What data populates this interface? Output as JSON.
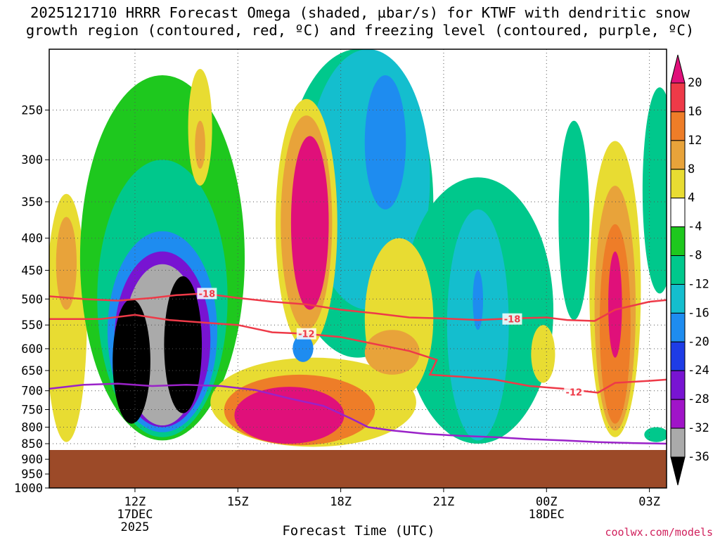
{
  "title": {
    "line1": "2025121710 HRRR Forecast Omega (shaded, µbar/s) for KTWF with dendritic snow",
    "line2": "growth region (contoured, red, ºC) and freezing level (contoured, purple, ºC)"
  },
  "credit": "coolwx.com/models",
  "chart_data": {
    "type": "heatmap",
    "title": "2025121710 HRRR Forecast Omega (shaded, µbar/s) for KTWF with dendritic snow growth region (contoured, red, ºC) and freezing level (contoured, purple, ºC)",
    "xlabel": "Forecast Time (UTC)",
    "ylabel": "",
    "x_range_hours_after_17DEC00Z": [
      9.5,
      27.5
    ],
    "y_scale": "log (inverted)",
    "ylim_mb": [
      1000,
      200
    ],
    "grid": true,
    "x_ticks": [
      {
        "hour": 12,
        "label": "12Z",
        "sub1": "17DEC",
        "sub2": "2025"
      },
      {
        "hour": 15,
        "label": "15Z",
        "sub1": "",
        "sub2": ""
      },
      {
        "hour": 18,
        "label": "18Z",
        "sub1": "",
        "sub2": ""
      },
      {
        "hour": 21,
        "label": "21Z",
        "sub1": "",
        "sub2": ""
      },
      {
        "hour": 24,
        "label": "00Z",
        "sub1": "18DEC",
        "sub2": ""
      },
      {
        "hour": 27,
        "label": "03Z",
        "sub1": "",
        "sub2": ""
      }
    ],
    "y_ticks": [
      {
        "p": 250,
        "label": "250"
      },
      {
        "p": 300,
        "label": "300"
      },
      {
        "p": 350,
        "label": "350"
      },
      {
        "p": 400,
        "label": "400"
      },
      {
        "p": 450,
        "label": "450"
      },
      {
        "p": 500,
        "label": "500"
      },
      {
        "p": 550,
        "label": "550"
      },
      {
        "p": 600,
        "label": "600"
      },
      {
        "p": 650,
        "label": "650"
      },
      {
        "p": 700,
        "label": "700"
      },
      {
        "p": 750,
        "label": "750"
      },
      {
        "p": 800,
        "label": "800"
      },
      {
        "p": 850,
        "label": "850"
      },
      {
        "p": 900,
        "label": "900"
      },
      {
        "p": 950,
        "label": "950"
      },
      {
        "p": 1000,
        "label": "1000"
      }
    ],
    "colorbar": {
      "bins": [
        {
          "lo": 20,
          "hi": null,
          "color": "#e0107a"
        },
        {
          "lo": 16,
          "hi": 20,
          "color": "#ee3a48"
        },
        {
          "lo": 12,
          "hi": 16,
          "color": "#ee7d28"
        },
        {
          "lo": 8,
          "hi": 12,
          "color": "#e8a33a"
        },
        {
          "lo": 4,
          "hi": 8,
          "color": "#e8dc32"
        },
        {
          "lo": -4,
          "hi": 4,
          "color": "#ffffff"
        },
        {
          "lo": -8,
          "hi": -4,
          "color": "#1ec81e"
        },
        {
          "lo": -12,
          "hi": -8,
          "color": "#00c88c"
        },
        {
          "lo": -16,
          "hi": -12,
          "color": "#14bece"
        },
        {
          "lo": -20,
          "hi": -16,
          "color": "#1e8cf0"
        },
        {
          "lo": -24,
          "hi": -20,
          "color": "#1e3ce6"
        },
        {
          "lo": -28,
          "hi": -24,
          "color": "#7814d2"
        },
        {
          "lo": -32,
          "hi": -28,
          "color": "#a014c8"
        },
        {
          "lo": -36,
          "hi": -32,
          "color": "#aaaaaa"
        },
        {
          "lo": null,
          "hi": -36,
          "color": "#000000"
        }
      ],
      "labels": [
        "20",
        "16",
        "12",
        "8",
        "4",
        "-4",
        "-8",
        "-12",
        "-16",
        "-20",
        "-24",
        "-28",
        "-32",
        "-36"
      ]
    },
    "terrain": {
      "surface_mb": 870,
      "color": "#9c4a28"
    },
    "dendritic_contours": {
      "color": "#ee3a48",
      "lines": [
        {
          "label": "-18",
          "points": [
            [
              9.5,
              495
            ],
            [
              10.5,
              500
            ],
            [
              11.5,
              503
            ],
            [
              12.5,
              498
            ],
            [
              13.2,
              493
            ],
            [
              14,
              490
            ],
            [
              15,
              498
            ],
            [
              16,
              505
            ],
            [
              17,
              510
            ],
            [
              18,
              520
            ],
            [
              19,
              527
            ],
            [
              20,
              535
            ],
            [
              21,
              537
            ],
            [
              22,
              540
            ],
            [
              23,
              537
            ],
            [
              24,
              535
            ],
            [
              24.6,
              540
            ],
            [
              25.4,
              542
            ],
            [
              26,
              520
            ],
            [
              27,
              505
            ],
            [
              27.5,
              502
            ]
          ]
        },
        {
          "label": "-12",
          "points": [
            [
              9.5,
              538
            ],
            [
              11,
              538
            ],
            [
              12,
              530
            ],
            [
              13,
              540
            ],
            [
              14,
              545
            ],
            [
              15,
              550
            ],
            [
              16,
              565
            ],
            [
              17,
              568
            ],
            [
              18,
              575
            ],
            [
              19,
              590
            ],
            [
              20,
              605
            ],
            [
              20.8,
              625
            ],
            [
              20.6,
              660
            ],
            [
              21.5,
              665
            ],
            [
              22.5,
              672
            ],
            [
              23.5,
              688
            ],
            [
              24.5,
              695
            ],
            [
              25.5,
              705
            ],
            [
              26,
              680
            ],
            [
              27,
              675
            ],
            [
              27.5,
              672
            ]
          ]
        }
      ],
      "label_positions": [
        [
          14.1,
          490,
          "-18"
        ],
        [
          17.0,
          568,
          "-12"
        ],
        [
          23.0,
          538,
          "-18"
        ],
        [
          24.8,
          703,
          "-12"
        ]
      ]
    },
    "freezing_level_contour": {
      "color": "#9a22c8",
      "points": [
        [
          9.5,
          695
        ],
        [
          10.5,
          685
        ],
        [
          11.5,
          682
        ],
        [
          12.5,
          688
        ],
        [
          13.5,
          685
        ],
        [
          14.5,
          688
        ],
        [
          15.5,
          698
        ],
        [
          16.5,
          720
        ],
        [
          17.5,
          740
        ],
        [
          18.3,
          775
        ],
        [
          18.8,
          800
        ],
        [
          19.5,
          810
        ],
        [
          20.5,
          820
        ],
        [
          21.5,
          826
        ],
        [
          22.5,
          830
        ],
        [
          23.5,
          836
        ],
        [
          24.5,
          840
        ],
        [
          25.5,
          845
        ],
        [
          26.5,
          848
        ],
        [
          27.5,
          850
        ]
      ]
    },
    "omega_regions": [
      {
        "level": 4,
        "center_hour": 10.0,
        "center_mb": 430,
        "half_width_hours": 0.6,
        "top_mb": 340,
        "bottom_mb": 845
      },
      {
        "level": 8,
        "center_hour": 10.0,
        "center_mb": 430,
        "half_width_hours": 0.3,
        "top_mb": 370,
        "bottom_mb": 520
      },
      {
        "level": -4,
        "center_hour": 12.8,
        "center_mb": 560,
        "half_width_hours": 2.4,
        "top_mb": 220,
        "bottom_mb": 840
      },
      {
        "level": -8,
        "center_hour": 12.8,
        "center_mb": 570,
        "half_width_hours": 1.9,
        "top_mb": 300,
        "bottom_mb": 830
      },
      {
        "level": -16,
        "center_hour": 12.8,
        "center_mb": 590,
        "half_width_hours": 1.6,
        "top_mb": 390,
        "bottom_mb": 815
      },
      {
        "level": -24,
        "center_hour": 12.8,
        "center_mb": 600,
        "half_width_hours": 1.4,
        "top_mb": 420,
        "bottom_mb": 800
      },
      {
        "level": -32,
        "center_hour": 12.8,
        "center_mb": 610,
        "half_width_hours": 1.15,
        "top_mb": 440,
        "bottom_mb": 795
      },
      {
        "level": -36,
        "center_hour": 11.9,
        "center_mb": 620,
        "half_width_hours": 0.55,
        "top_mb": 500,
        "bottom_mb": 790
      },
      {
        "level": -36,
        "center_hour": 13.4,
        "center_mb": 580,
        "half_width_hours": 0.55,
        "top_mb": 460,
        "bottom_mb": 760
      },
      {
        "level": 4,
        "center_hour": 13.9,
        "center_mb": 280,
        "half_width_hours": 0.35,
        "top_mb": 215,
        "bottom_mb": 330
      },
      {
        "level": 8,
        "center_hour": 13.9,
        "center_mb": 285,
        "half_width_hours": 0.15,
        "top_mb": 260,
        "bottom_mb": 310
      },
      {
        "level": -8,
        "center_hour": 18.5,
        "center_mb": 330,
        "half_width_hours": 2.2,
        "top_mb": 200,
        "bottom_mb": 620
      },
      {
        "level": -12,
        "center_hour": 18.8,
        "center_mb": 300,
        "half_width_hours": 1.8,
        "top_mb": 200,
        "bottom_mb": 520
      },
      {
        "level": -16,
        "center_hour": 19.3,
        "center_mb": 280,
        "half_width_hours": 0.6,
        "top_mb": 220,
        "bottom_mb": 360
      },
      {
        "level": 4,
        "center_hour": 17.0,
        "center_mb": 430,
        "half_width_hours": 0.9,
        "top_mb": 240,
        "bottom_mb": 600
      },
      {
        "level": 8,
        "center_hour": 17.0,
        "center_mb": 400,
        "half_width_hours": 0.75,
        "top_mb": 255,
        "bottom_mb": 560
      },
      {
        "level": 20,
        "center_hour": 17.1,
        "center_mb": 370,
        "half_width_hours": 0.55,
        "top_mb": 275,
        "bottom_mb": 520
      },
      {
        "level": 4,
        "center_hour": 17.2,
        "center_mb": 760,
        "half_width_hours": 3.0,
        "top_mb": 620,
        "bottom_mb": 860
      },
      {
        "level": 12,
        "center_hour": 16.8,
        "center_mb": 770,
        "half_width_hours": 2.2,
        "top_mb": 660,
        "bottom_mb": 855
      },
      {
        "level": 20,
        "center_hour": 16.5,
        "center_mb": 780,
        "half_width_hours": 1.6,
        "top_mb": 690,
        "bottom_mb": 850
      },
      {
        "level": -16,
        "center_hour": 16.9,
        "center_mb": 600,
        "half_width_hours": 0.3,
        "top_mb": 570,
        "bottom_mb": 630
      },
      {
        "level": -8,
        "center_hour": 22.0,
        "center_mb": 560,
        "half_width_hours": 2.2,
        "top_mb": 320,
        "bottom_mb": 850
      },
      {
        "level": -12,
        "center_hour": 22.0,
        "center_mb": 520,
        "half_width_hours": 0.9,
        "top_mb": 360,
        "bottom_mb": 840
      },
      {
        "level": -16,
        "center_hour": 22.0,
        "center_mb": 500,
        "half_width_hours": 0.15,
        "top_mb": 450,
        "bottom_mb": 560
      },
      {
        "level": 4,
        "center_hour": 19.7,
        "center_mb": 520,
        "half_width_hours": 1.0,
        "top_mb": 400,
        "bottom_mb": 720
      },
      {
        "level": 8,
        "center_hour": 19.5,
        "center_mb": 600,
        "half_width_hours": 0.8,
        "top_mb": 560,
        "bottom_mb": 660
      },
      {
        "level": -8,
        "center_hour": 24.8,
        "center_mb": 370,
        "half_width_hours": 0.45,
        "top_mb": 260,
        "bottom_mb": 540
      },
      {
        "level": 4,
        "center_hour": 23.9,
        "center_mb": 600,
        "half_width_hours": 0.35,
        "top_mb": 550,
        "bottom_mb": 680
      },
      {
        "level": 4,
        "center_hour": 26.0,
        "center_mb": 560,
        "half_width_hours": 0.75,
        "top_mb": 280,
        "bottom_mb": 830
      },
      {
        "level": 8,
        "center_hour": 26.0,
        "center_mb": 560,
        "half_width_hours": 0.6,
        "top_mb": 330,
        "bottom_mb": 810
      },
      {
        "level": 12,
        "center_hour": 26.0,
        "center_mb": 600,
        "half_width_hours": 0.45,
        "top_mb": 380,
        "bottom_mb": 790
      },
      {
        "level": 20,
        "center_hour": 26.0,
        "center_mb": 500,
        "half_width_hours": 0.2,
        "top_mb": 420,
        "bottom_mb": 620
      },
      {
        "level": -8,
        "center_hour": 27.3,
        "center_mb": 340,
        "half_width_hours": 0.5,
        "top_mb": 230,
        "bottom_mb": 490
      },
      {
        "level": -8,
        "center_hour": 27.2,
        "center_mb": 820,
        "half_width_hours": 0.35,
        "top_mb": 800,
        "bottom_mb": 845
      }
    ]
  }
}
